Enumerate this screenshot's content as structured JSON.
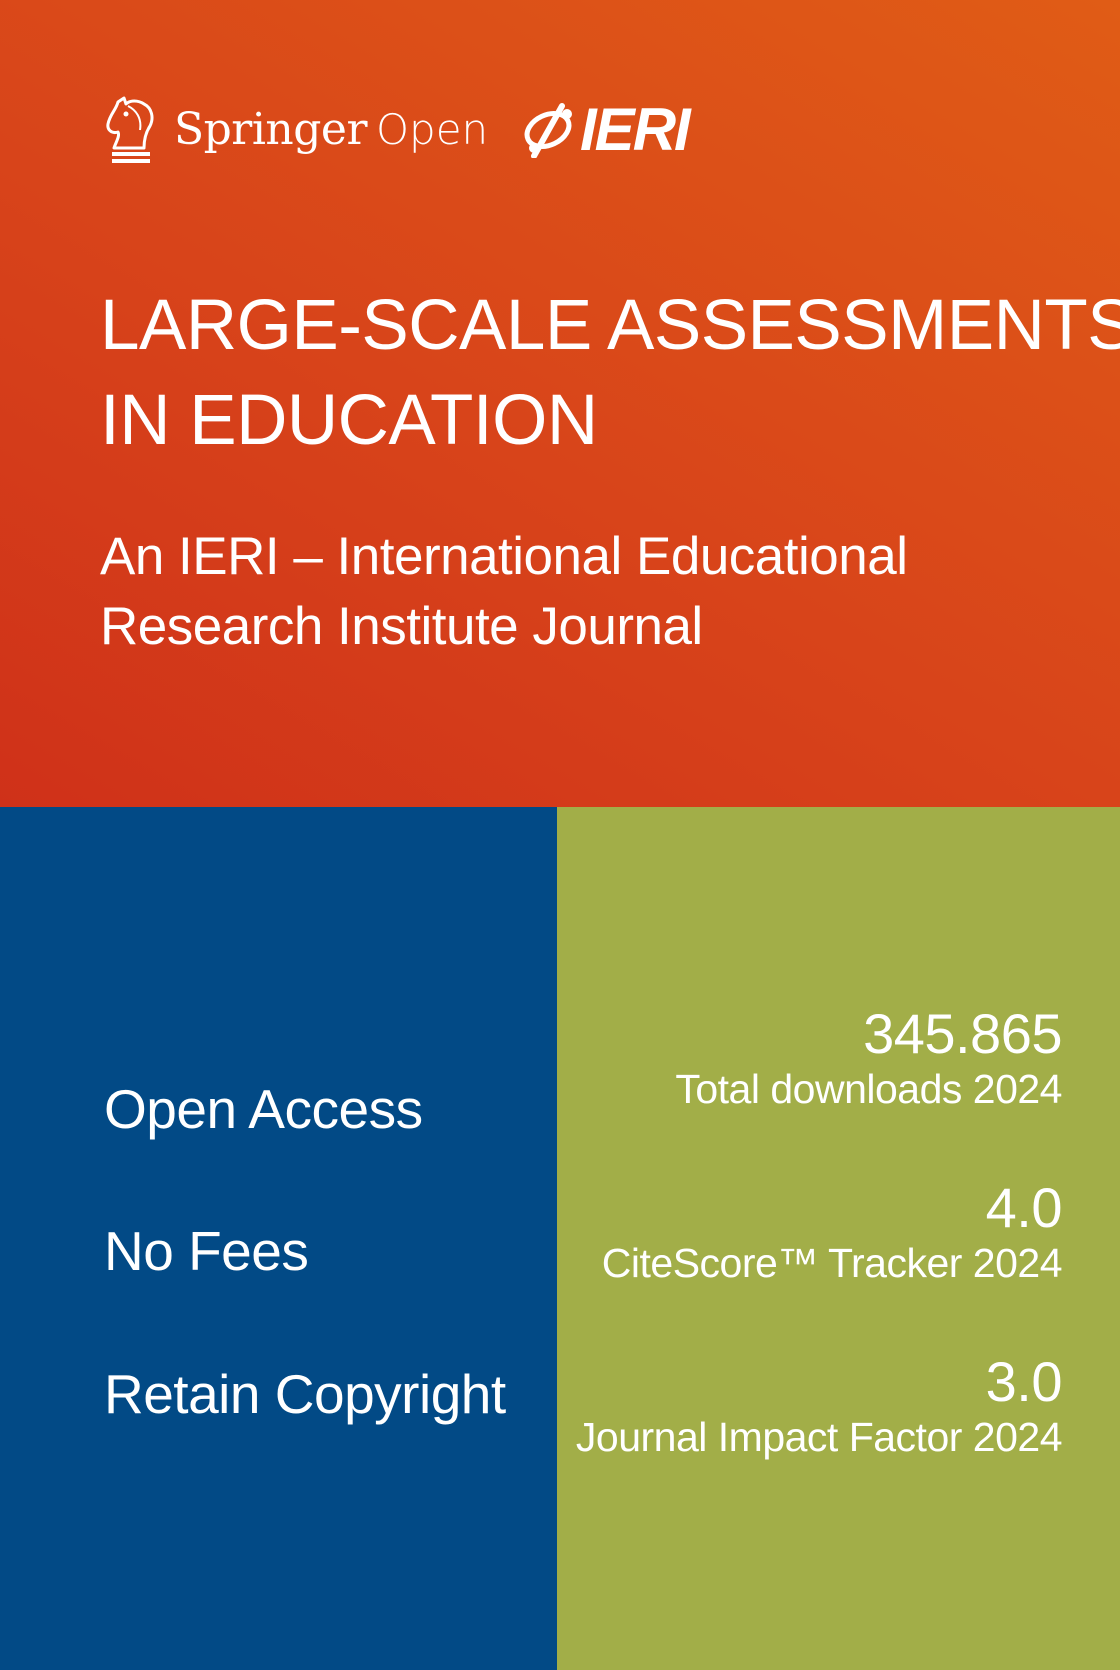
{
  "colors": {
    "header_gradient_start": "#cf3119",
    "header_gradient_end": "#e05c16",
    "left_panel": "#024a86",
    "right_panel": "#a2ae48",
    "text": "#ffffff"
  },
  "logos": {
    "springer": {
      "icon": "knight-horse-icon",
      "word": "Springer",
      "suffix": "Open"
    },
    "ieri": {
      "icon": "ieri-emblem-icon",
      "word": "IERI"
    }
  },
  "journal": {
    "title_lines": [
      "LARGE-SCALE ASSESSMENTS",
      "IN EDUCATION"
    ],
    "subtitle_lines": [
      "An IERI – International Educational",
      "Research Institute Journal"
    ]
  },
  "features": [
    "Open Access",
    "No Fees",
    "Retain Copyright"
  ],
  "metrics": [
    {
      "value": "345.865",
      "label": "Total downloads 2024"
    },
    {
      "value": "4.0",
      "label": "CiteScore™ Tracker 2024"
    },
    {
      "value": "3.0",
      "label": "Journal Impact Factor 2024"
    }
  ]
}
